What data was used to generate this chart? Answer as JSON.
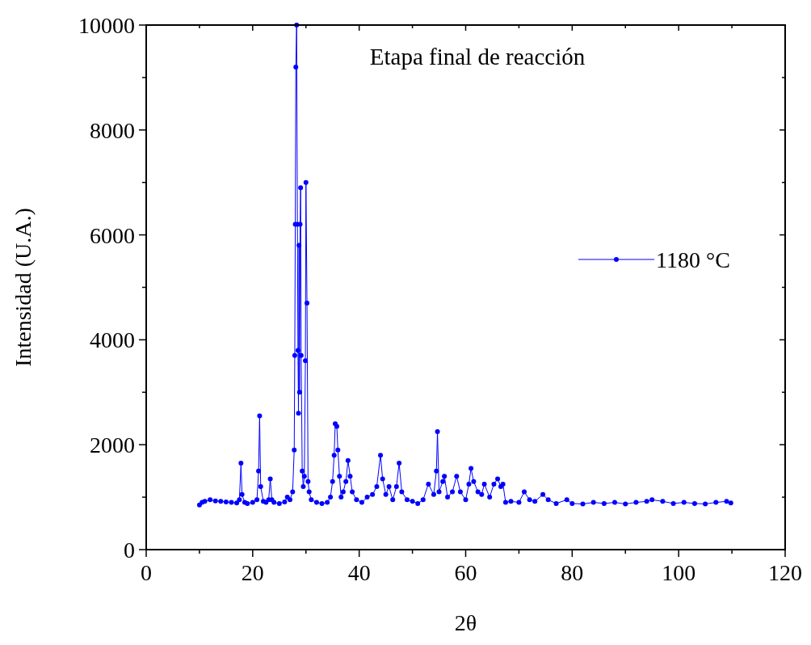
{
  "chart_data": {
    "type": "line",
    "title": "Etapa final de reacción",
    "xlabel": "2θ",
    "ylabel": "Intensidad (U.A.)",
    "xlim": [
      0,
      120
    ],
    "ylim": [
      0,
      10000
    ],
    "xticks": [
      0,
      {
        "value": 10,
        "label": null
      },
      20,
      {
        "value": 30,
        "label": null
      },
      40,
      {
        "value": 50,
        "label": null
      },
      60,
      {
        "value": 70,
        "label": null
      },
      80,
      {
        "value": 90,
        "label": null
      },
      100,
      {
        "value": 110,
        "label": null
      },
      120
    ],
    "yticks": [
      0,
      {
        "value": 1000,
        "label": null
      },
      2000,
      {
        "value": 3000,
        "label": null
      },
      4000,
      {
        "value": 5000,
        "label": null
      },
      6000,
      {
        "value": 7000,
        "label": null
      },
      8000,
      {
        "value": 9000,
        "label": null
      },
      10000
    ],
    "grid": false,
    "legend": "right",
    "marker": "circle",
    "line_style": "solid",
    "series": [
      {
        "name": "1180 °C",
        "color": "#0000ff",
        "x": [
          10,
          10.5,
          11,
          12,
          13,
          14,
          15,
          16,
          17,
          17.5,
          17.8,
          18.0,
          18.5,
          19,
          20,
          20.8,
          21.1,
          21.3,
          21.5,
          22,
          22.5,
          23,
          23.3,
          23.6,
          24,
          25,
          26,
          26.5,
          27,
          27.5,
          27.8,
          27.9,
          28.0,
          28.1,
          28.25,
          28.4,
          28.5,
          28.6,
          28.7,
          28.8,
          28.9,
          29.0,
          29.1,
          29.3,
          29.5,
          29.7,
          29.9,
          30.0,
          30.2,
          30.4,
          30.6,
          31,
          32,
          33,
          34,
          34.6,
          35,
          35.3,
          35.5,
          35.8,
          36.0,
          36.3,
          36.6,
          37,
          37.5,
          37.9,
          38.3,
          38.7,
          39.5,
          40.5,
          41.5,
          42.5,
          43.3,
          44.0,
          44.4,
          45,
          45.6,
          46.3,
          47,
          47.5,
          48,
          49,
          50,
          51,
          52,
          53,
          54,
          54.5,
          54.7,
          55,
          55.7,
          56,
          56.6,
          57.5,
          58.3,
          59,
          60,
          60.6,
          61,
          61.5,
          62.3,
          63,
          63.5,
          64.5,
          65.3,
          66,
          66.6,
          67,
          67.5,
          68.5,
          70,
          71,
          72,
          73,
          74.5,
          75.5,
          77,
          79,
          80,
          82,
          84,
          86,
          88,
          90,
          92,
          94,
          95,
          97,
          99,
          101,
          103,
          105,
          107,
          109,
          109.8
        ],
        "values": [
          850,
          900,
          920,
          950,
          930,
          920,
          910,
          900,
          890,
          950,
          1650,
          1050,
          900,
          880,
          900,
          950,
          1500,
          2550,
          1200,
          920,
          900,
          950,
          1350,
          950,
          900,
          880,
          910,
          1000,
          950,
          1100,
          1900,
          3700,
          6200,
          9200,
          10000,
          6200,
          3800,
          2600,
          5800,
          3000,
          6200,
          6900,
          3700,
          1500,
          1200,
          1400,
          3600,
          7000,
          4700,
          1300,
          1100,
          950,
          900,
          880,
          900,
          1000,
          1300,
          1800,
          2400,
          2350,
          1900,
          1400,
          1000,
          1100,
          1300,
          1700,
          1400,
          1100,
          950,
          900,
          1000,
          1050,
          1200,
          1800,
          1350,
          1050,
          1200,
          950,
          1200,
          1650,
          1100,
          950,
          920,
          880,
          950,
          1250,
          1050,
          1500,
          2250,
          1100,
          1300,
          1400,
          1000,
          1100,
          1400,
          1100,
          950,
          1250,
          1550,
          1300,
          1100,
          1050,
          1250,
          1000,
          1250,
          1350,
          1200,
          1250,
          900,
          920,
          900,
          1100,
          950,
          920,
          1050,
          950,
          880,
          950,
          880,
          870,
          900,
          880,
          900,
          870,
          900,
          920,
          950,
          920,
          880,
          900,
          880,
          870,
          900,
          920,
          890
        ]
      }
    ]
  }
}
